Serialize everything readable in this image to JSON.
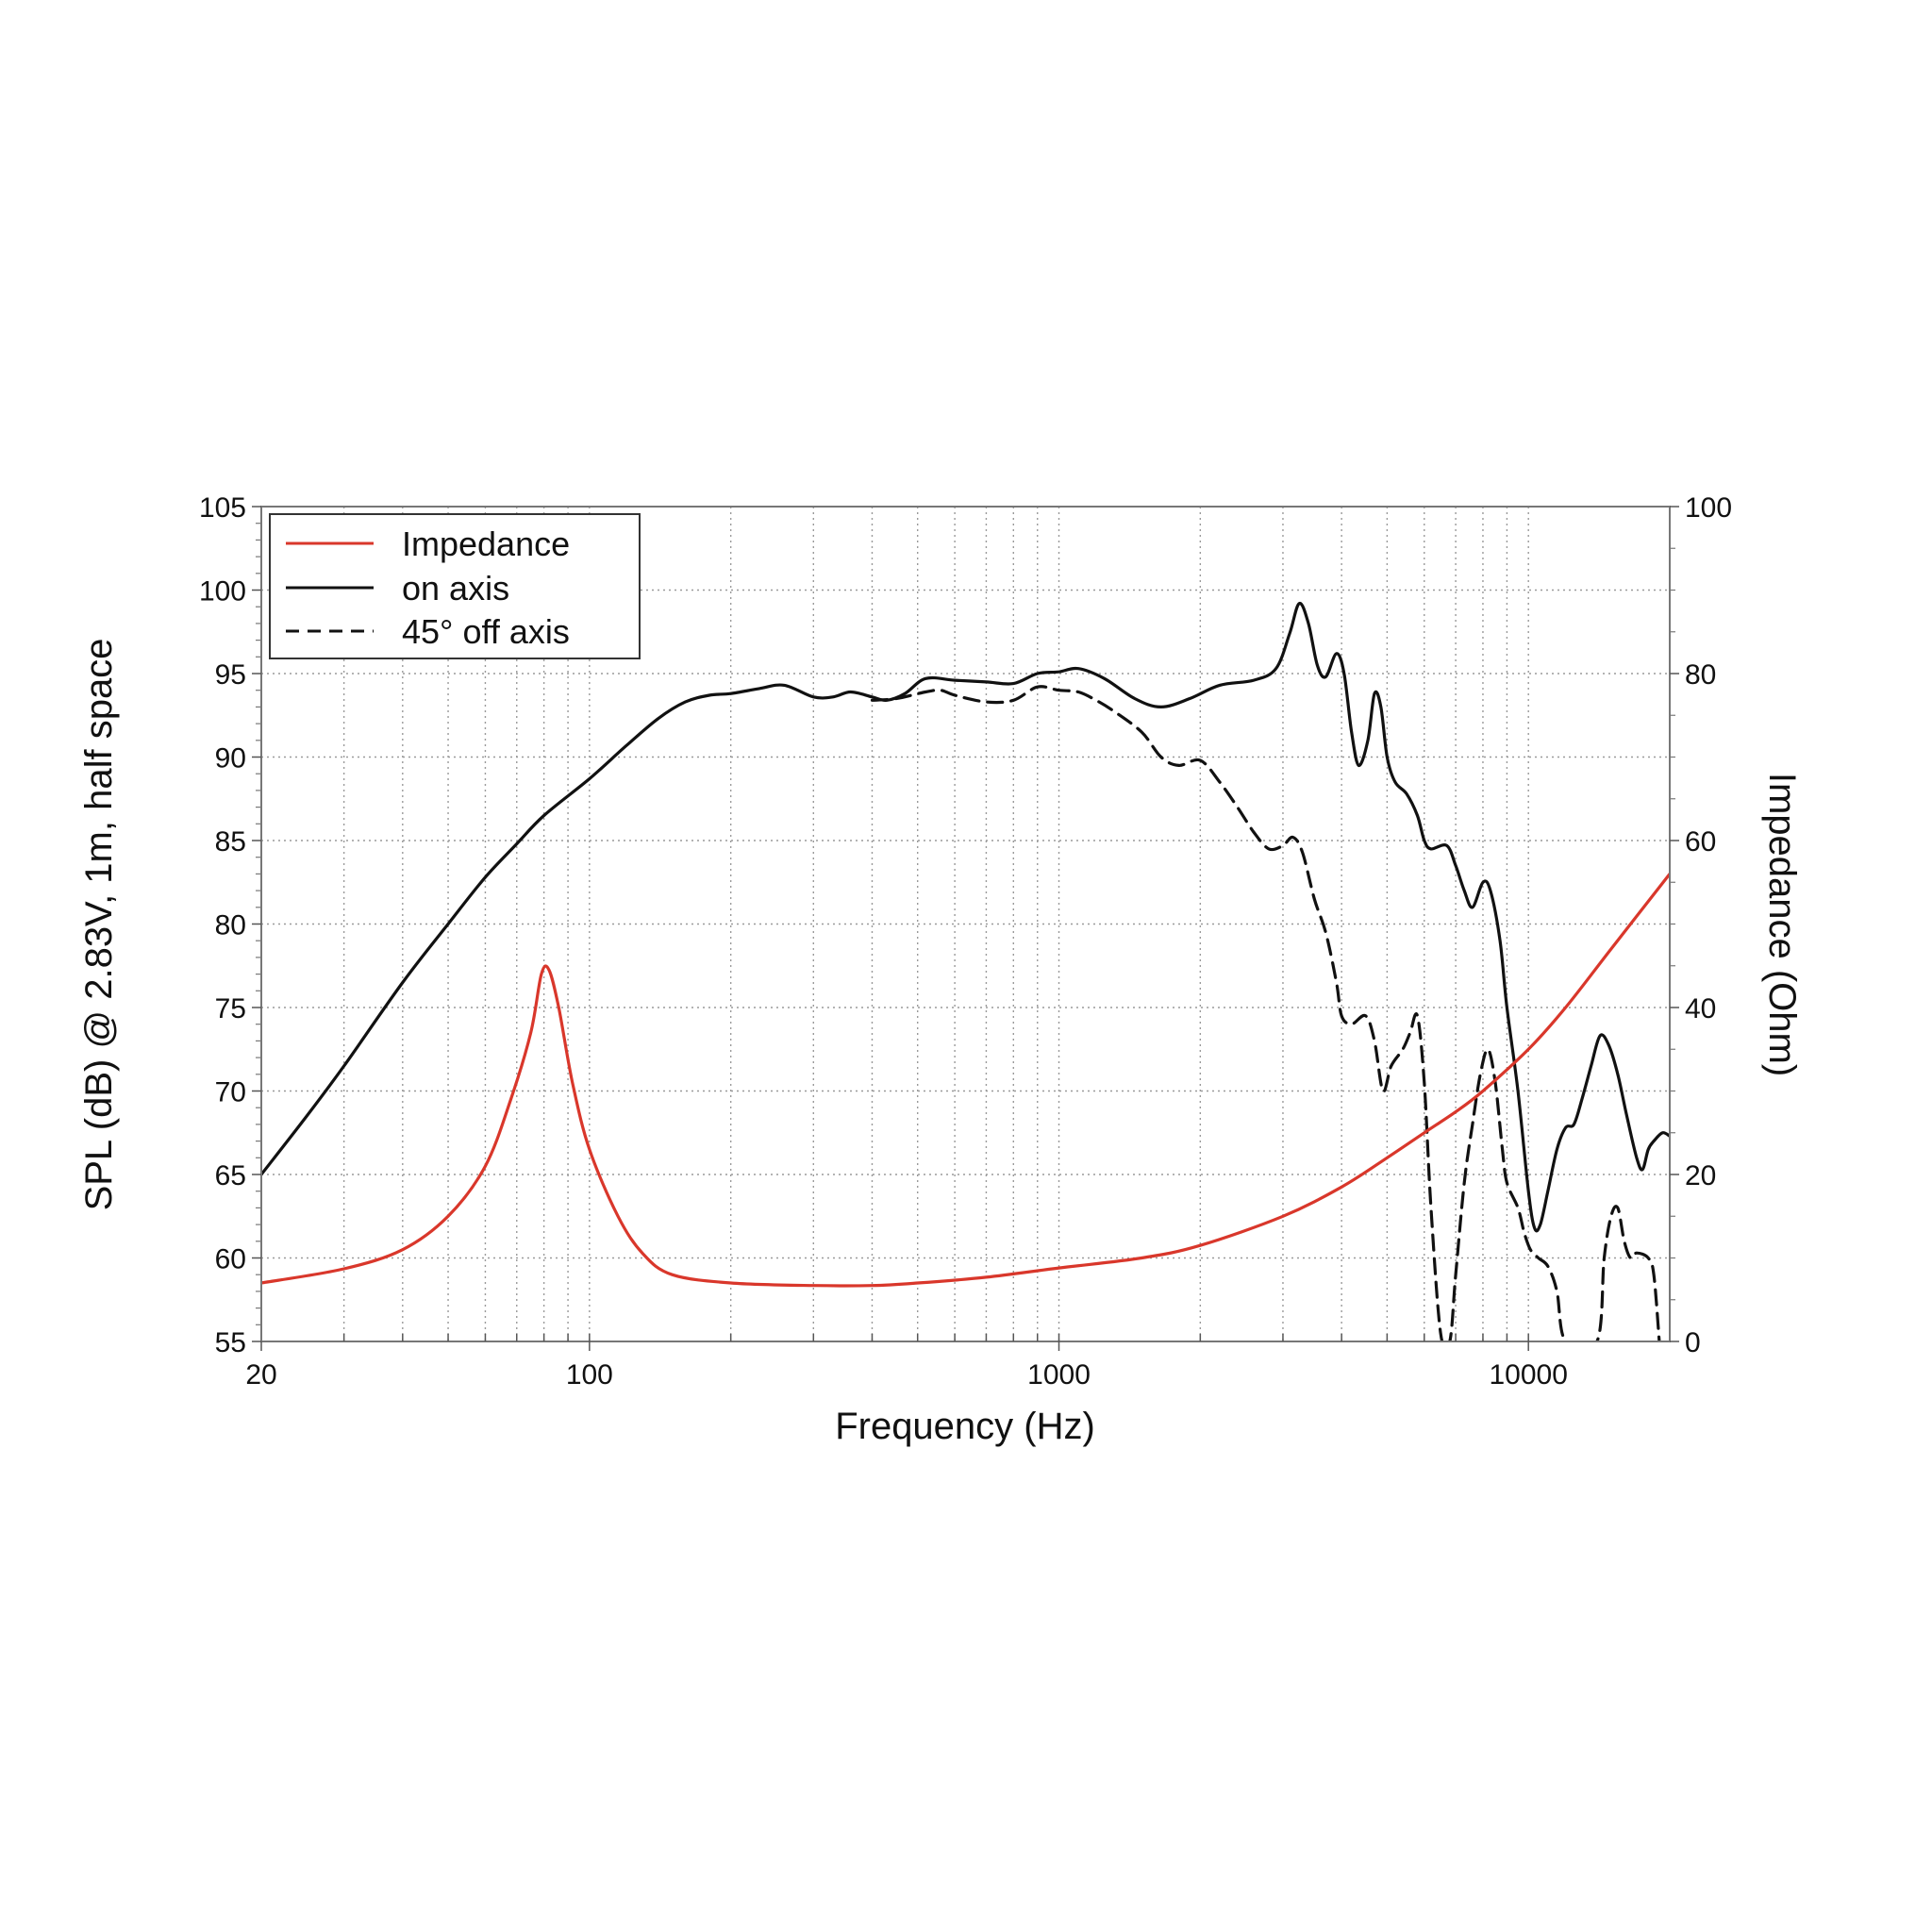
{
  "chart_data": {
    "type": "line",
    "xlabel": "Frequency (Hz)",
    "ylabel": "SPL (dB) @ 2.83V, 1m, half space",
    "y2label": "Impedance (Ohm)",
    "x_scale": "log",
    "xlim": [
      20,
      20000
    ],
    "ylim": [
      55,
      105
    ],
    "y2lim": [
      0,
      100
    ],
    "grid": true,
    "legend_position": "top-left",
    "x_ticks": [
      "20",
      "100",
      "1000",
      "10000"
    ],
    "y_ticks": [
      "55",
      "60",
      "65",
      "70",
      "75",
      "80",
      "85",
      "90",
      "95",
      "100",
      "105"
    ],
    "y2_ticks": [
      "0",
      "20",
      "40",
      "60",
      "80",
      "100"
    ],
    "series": [
      {
        "name": "Impedance",
        "axis": "right",
        "color": "#d9372b",
        "style": "solid",
        "points": [
          [
            20,
            7
          ],
          [
            30,
            8.7
          ],
          [
            40,
            11
          ],
          [
            50,
            15
          ],
          [
            60,
            21
          ],
          [
            68,
            29
          ],
          [
            75,
            37
          ],
          [
            79,
            44
          ],
          [
            82,
            44.5
          ],
          [
            86,
            40
          ],
          [
            92,
            31
          ],
          [
            100,
            23
          ],
          [
            115,
            15
          ],
          [
            130,
            10.5
          ],
          [
            150,
            8
          ],
          [
            200,
            7
          ],
          [
            300,
            6.7
          ],
          [
            400,
            6.7
          ],
          [
            500,
            7
          ],
          [
            700,
            7.7
          ],
          [
            1000,
            8.8
          ],
          [
            1500,
            10
          ],
          [
            2000,
            11.5
          ],
          [
            3000,
            15
          ],
          [
            4000,
            18.5
          ],
          [
            5000,
            22
          ],
          [
            6000,
            25
          ],
          [
            7000,
            27.5
          ],
          [
            8000,
            30
          ],
          [
            10000,
            35
          ],
          [
            12000,
            40
          ],
          [
            15000,
            47
          ],
          [
            20000,
            56
          ]
        ]
      },
      {
        "name": "on axis",
        "axis": "left",
        "color": "#111111",
        "style": "solid",
        "points": [
          [
            20,
            65
          ],
          [
            25,
            68.5
          ],
          [
            30,
            71.5
          ],
          [
            40,
            76.5
          ],
          [
            50,
            80
          ],
          [
            60,
            82.8
          ],
          [
            70,
            84.8
          ],
          [
            80,
            86.5
          ],
          [
            100,
            88.7
          ],
          [
            120,
            90.7
          ],
          [
            140,
            92.3
          ],
          [
            160,
            93.3
          ],
          [
            180,
            93.7
          ],
          [
            200,
            93.8
          ],
          [
            230,
            94.1
          ],
          [
            260,
            94.3
          ],
          [
            300,
            93.6
          ],
          [
            330,
            93.6
          ],
          [
            360,
            93.9
          ],
          [
            400,
            93.6
          ],
          [
            430,
            93.4
          ],
          [
            470,
            93.8
          ],
          [
            520,
            94.7
          ],
          [
            600,
            94.6
          ],
          [
            700,
            94.5
          ],
          [
            800,
            94.4
          ],
          [
            900,
            95
          ],
          [
            1000,
            95.1
          ],
          [
            1100,
            95.3
          ],
          [
            1250,
            94.7
          ],
          [
            1450,
            93.5
          ],
          [
            1650,
            93
          ],
          [
            1900,
            93.5
          ],
          [
            2200,
            94.3
          ],
          [
            2600,
            94.6
          ],
          [
            2900,
            95.3
          ],
          [
            3100,
            97.4
          ],
          [
            3250,
            99.2
          ],
          [
            3400,
            98
          ],
          [
            3550,
            95.5
          ],
          [
            3700,
            94.8
          ],
          [
            3900,
            96.2
          ],
          [
            4050,
            95
          ],
          [
            4200,
            91.5
          ],
          [
            4350,
            89.5
          ],
          [
            4550,
            91
          ],
          [
            4700,
            93.8
          ],
          [
            4850,
            93
          ],
          [
            5000,
            90
          ],
          [
            5200,
            88.5
          ],
          [
            5500,
            87.8
          ],
          [
            5800,
            86.5
          ],
          [
            6000,
            85
          ],
          [
            6200,
            84.5
          ],
          [
            6700,
            84.7
          ],
          [
            7000,
            83.5
          ],
          [
            7300,
            82
          ],
          [
            7600,
            81
          ],
          [
            8000,
            82.5
          ],
          [
            8300,
            82
          ],
          [
            8700,
            79
          ],
          [
            9000,
            75
          ],
          [
            9500,
            70
          ],
          [
            10000,
            64
          ],
          [
            10300,
            61.8
          ],
          [
            10600,
            62
          ],
          [
            11000,
            64
          ],
          [
            11500,
            66.5
          ],
          [
            12000,
            67.8
          ],
          [
            12500,
            68
          ],
          [
            13000,
            69.5
          ],
          [
            13600,
            71.5
          ],
          [
            14200,
            73.3
          ],
          [
            14800,
            72.8
          ],
          [
            15500,
            71
          ],
          [
            16200,
            68.5
          ],
          [
            17000,
            66
          ],
          [
            17500,
            65.3
          ],
          [
            18000,
            66.5
          ],
          [
            18500,
            67
          ],
          [
            19300,
            67.5
          ],
          [
            20000,
            67.3
          ]
        ]
      },
      {
        "name": "45° off axis",
        "axis": "left",
        "color": "#111111",
        "style": "dashed",
        "points": [
          [
            400,
            93.4
          ],
          [
            450,
            93.5
          ],
          [
            520,
            93.9
          ],
          [
            560,
            94
          ],
          [
            600,
            93.7
          ],
          [
            700,
            93.3
          ],
          [
            800,
            93.4
          ],
          [
            900,
            94.2
          ],
          [
            1000,
            94
          ],
          [
            1100,
            93.9
          ],
          [
            1200,
            93.4
          ],
          [
            1300,
            92.8
          ],
          [
            1500,
            91.5
          ],
          [
            1650,
            90
          ],
          [
            1800,
            89.5
          ],
          [
            2000,
            89.8
          ],
          [
            2200,
            88.5
          ],
          [
            2400,
            87
          ],
          [
            2600,
            85.5
          ],
          [
            2800,
            84.5
          ],
          [
            3000,
            84.7
          ],
          [
            3150,
            85.2
          ],
          [
            3300,
            84.3
          ],
          [
            3500,
            81.5
          ],
          [
            3700,
            79.5
          ],
          [
            3900,
            76.5
          ],
          [
            4000,
            74.5
          ],
          [
            4200,
            74
          ],
          [
            4500,
            74.5
          ],
          [
            4700,
            73
          ],
          [
            4900,
            70
          ],
          [
            5100,
            71.5
          ],
          [
            5400,
            72.5
          ],
          [
            5600,
            73.5
          ],
          [
            5800,
            74.5
          ],
          [
            6000,
            70.5
          ],
          [
            6200,
            63
          ],
          [
            6500,
            55.5
          ],
          [
            6800,
            55
          ],
          [
            7000,
            59
          ],
          [
            7300,
            64.5
          ],
          [
            7600,
            68
          ],
          [
            7900,
            71
          ],
          [
            8200,
            72.5
          ],
          [
            8500,
            70.5
          ],
          [
            8800,
            66.5
          ],
          [
            9000,
            64.5
          ],
          [
            9500,
            63
          ],
          [
            9800,
            61.5
          ],
          [
            10100,
            60.5
          ],
          [
            10500,
            60
          ],
          [
            11000,
            59.5
          ],
          [
            11500,
            58
          ],
          [
            12000,
            55
          ],
          [
            14000,
            55
          ],
          [
            14500,
            60
          ],
          [
            15000,
            62.5
          ],
          [
            15500,
            63
          ],
          [
            16000,
            61
          ],
          [
            16500,
            60
          ],
          [
            17000,
            60.3
          ],
          [
            18000,
            60
          ],
          [
            18500,
            59
          ],
          [
            19000,
            55
          ]
        ]
      }
    ]
  }
}
